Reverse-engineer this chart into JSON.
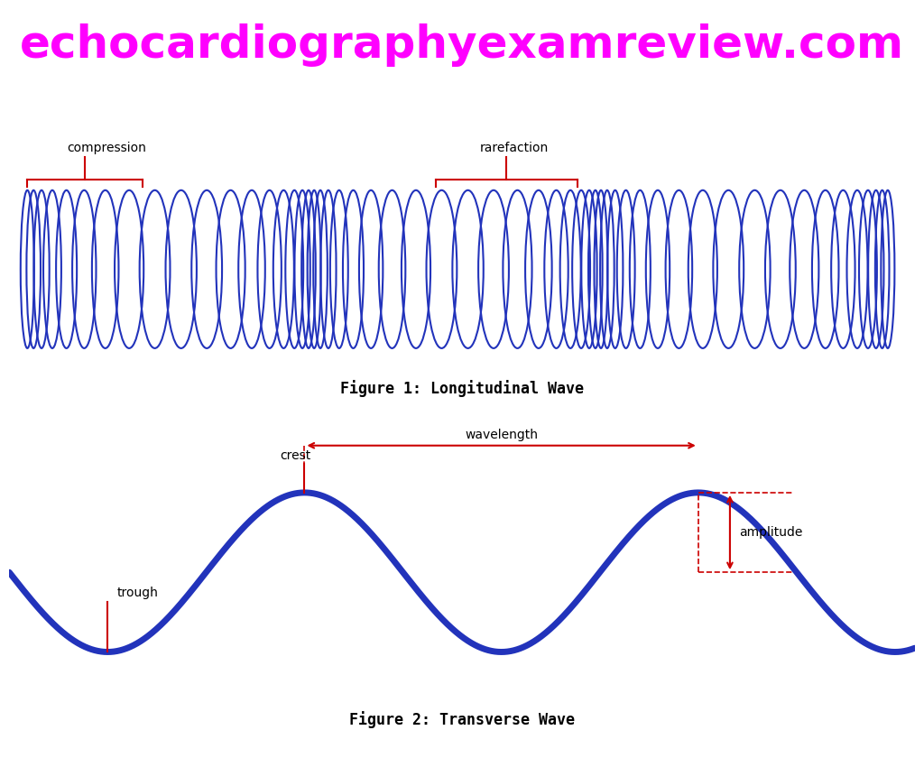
{
  "header_text": "echocardiographyexamreview.com",
  "header_bg": "#111111",
  "header_color": "#ff00ff",
  "header_fontsize": 36,
  "fig_bg": "#ffffff",
  "wave_color": "#2233bb",
  "annotation_color": "#cc0000",
  "fig1_label": "Figure 1: Longitudinal Wave",
  "fig2_label": "Figure 2: Transverse Wave",
  "fig1_label_fontsize": 12,
  "fig2_label_fontsize": 12,
  "compression_label": "compression",
  "rarefaction_label": "rarefaction",
  "crest_label": "crest",
  "trough_label": "trough",
  "wavelength_label": "wavelength",
  "amplitude_label": "amplitude",
  "annotation_fontsize": 10,
  "label_fontsize": 10
}
